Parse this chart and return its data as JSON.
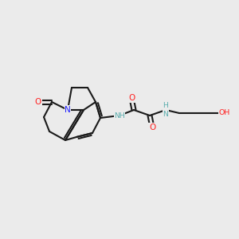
{
  "bg_color": "#ebebeb",
  "bond_color": "#1a1a1a",
  "bond_width": 1.5,
  "font_size": 7.5,
  "color_N": "#2020ff",
  "color_O": "#ff2020",
  "color_OH": "#ff2020",
  "color_NH": "#5aadad",
  "color_C": "#1a1a1a",
  "figsize": [
    3.0,
    3.0
  ],
  "dpi": 100
}
